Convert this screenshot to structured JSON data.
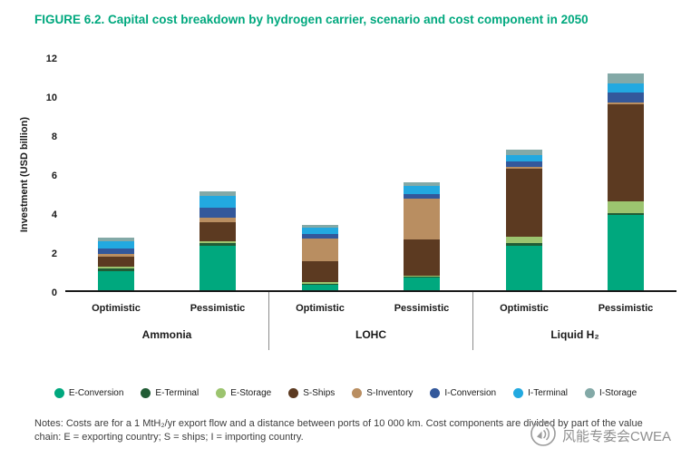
{
  "title": {
    "text": "FIGURE 6.2.  Capital cost breakdown by hydrogen carrier, scenario and cost component in 2050"
  },
  "chart_data": {
    "type": "bar",
    "subtype": "stacked",
    "title": "Capital cost breakdown by hydrogen carrier, scenario and cost component in 2050",
    "ylabel": "Investment (USD billion)",
    "ylim": [
      0,
      12
    ],
    "yticks": [
      0,
      2,
      4,
      6,
      8,
      10,
      12
    ],
    "grid": false,
    "legend_position": "bottom",
    "groups": [
      {
        "label": "Ammonia",
        "scenarios": [
          "Optimistic",
          "Pessimistic"
        ]
      },
      {
        "label": "LOHC",
        "scenarios": [
          "Optimistic",
          "Pessimistic"
        ]
      },
      {
        "label": "Liquid H₂",
        "scenarios": [
          "Optimistic",
          "Pessimistic"
        ]
      }
    ],
    "bar_order": [
      "Ammonia Optimistic",
      "Ammonia Pessimistic",
      "LOHC Optimistic",
      "LOHC Pessimistic",
      "Liquid H₂ Optimistic",
      "Liquid H₂ Pessimistic"
    ],
    "series": [
      {
        "name": "E-Conversion",
        "color": "#00A87E",
        "values": [
          1.0,
          2.3,
          0.3,
          0.65,
          2.3,
          3.85
        ]
      },
      {
        "name": "E-Terminal",
        "color": "#215C35",
        "values": [
          0.1,
          0.1,
          0.05,
          0.05,
          0.1,
          0.1
        ]
      },
      {
        "name": "E-Storage",
        "color": "#9CC46F",
        "values": [
          0.1,
          0.1,
          0.05,
          0.05,
          0.35,
          0.6
        ]
      },
      {
        "name": "S-Ships",
        "color": "#5C3A21",
        "values": [
          0.5,
          1.0,
          1.1,
          1.85,
          3.5,
          5.0
        ]
      },
      {
        "name": "S-Inventory",
        "color": "#B98E61",
        "values": [
          0.15,
          0.2,
          1.15,
          2.1,
          0.1,
          0.1
        ]
      },
      {
        "name": "I-Conversion",
        "color": "#33589B",
        "values": [
          0.3,
          0.55,
          0.25,
          0.25,
          0.25,
          0.5
        ]
      },
      {
        "name": "I-Terminal",
        "color": "#22A9E0",
        "values": [
          0.35,
          0.6,
          0.3,
          0.4,
          0.35,
          0.45
        ]
      },
      {
        "name": "I-Storage",
        "color": "#83A9A7",
        "values": [
          0.2,
          0.2,
          0.15,
          0.2,
          0.25,
          0.5
        ]
      }
    ],
    "totals": [
      2.7,
      5.05,
      3.35,
      5.55,
      7.2,
      11.1
    ]
  },
  "notes": {
    "text": "Notes: Costs are for a 1 MtH₂/yr export flow and a distance between ports of 10 000 km. Cost components are divided by part of the value chain: E = exporting country; S = ships; I = importing country."
  },
  "watermark": {
    "text": "风能专委会CWEA"
  }
}
